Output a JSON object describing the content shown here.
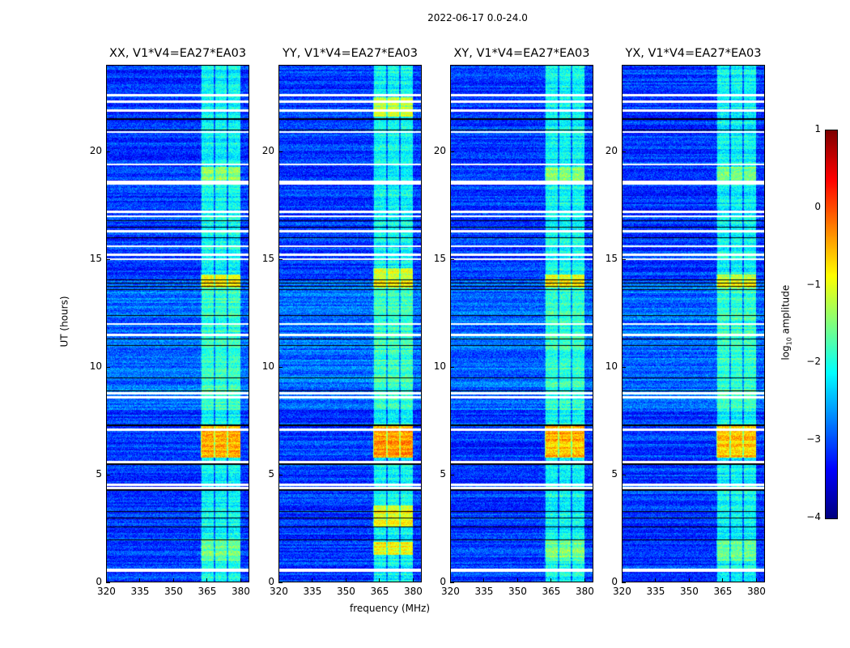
{
  "suptitle": "2022-06-17 0.0-24.0",
  "chart_data": {
    "type": "heatmap",
    "title": "2022-06-17 0.0-24.0",
    "xlabel": "frequency (MHz)",
    "ylabel": "UT (hours)",
    "xlim": [
      320,
      384
    ],
    "ylim": [
      0,
      24
    ],
    "xticks": [
      "320",
      "335",
      "350",
      "365",
      "380"
    ],
    "yticks": [
      "0",
      "5",
      "10",
      "15",
      "20"
    ],
    "xtick_values": [
      320,
      335,
      350,
      365,
      380
    ],
    "ytick_values": [
      0,
      5,
      10,
      15,
      20
    ],
    "panels": [
      {
        "title": "XX, V1*V4=EA27*EA03",
        "band_boost": [
          [
            5.8,
            7.3,
            1.6
          ],
          [
            13.7,
            14.3,
            1.1
          ],
          [
            18.6,
            19.3,
            0.6
          ],
          [
            1.0,
            2.0,
            0.5
          ]
        ]
      },
      {
        "title": "YY, V1*V4=EA27*EA03",
        "band_boost": [
          [
            5.8,
            7.3,
            1.7
          ],
          [
            2.6,
            3.6,
            1.2
          ],
          [
            1.3,
            1.9,
            1.2
          ],
          [
            13.7,
            14.6,
            1.0
          ],
          [
            21.6,
            22.5,
            0.9
          ]
        ]
      },
      {
        "title": "XY, V1*V4=EA27*EA03",
        "band_boost": [
          [
            5.8,
            7.3,
            1.6
          ],
          [
            13.7,
            14.3,
            1.1
          ],
          [
            18.6,
            19.3,
            0.6
          ],
          [
            1.0,
            2.0,
            0.5
          ]
        ]
      },
      {
        "title": "YX, V1*V4=EA27*EA03",
        "band_boost": [
          [
            5.8,
            7.3,
            1.5
          ],
          [
            13.7,
            14.3,
            1.0
          ],
          [
            18.6,
            19.3,
            0.6
          ],
          [
            1.0,
            2.0,
            0.5
          ]
        ]
      }
    ],
    "baseline_log_amplitude": -3.1,
    "bright_band_mhz": [
      362,
      380
    ],
    "flagged_hours": [
      0.55,
      0.62,
      4.4,
      4.55,
      5.6,
      7.1,
      8.6,
      8.8,
      11.5,
      12.0,
      15.0,
      15.2,
      15.6,
      16.3,
      17.0,
      17.2,
      18.5,
      18.6,
      19.4,
      20.9,
      21.9,
      22.3,
      22.6
    ],
    "colorbar": {
      "label": "log10 amplitude",
      "label_main": "log",
      "label_sub": "10",
      "label_rest": " amplitude",
      "range": [
        -4,
        1
      ],
      "ticks": [
        "1",
        "0",
        "−1",
        "−2",
        "−3",
        "−4"
      ],
      "tick_values": [
        1,
        0,
        -1,
        -2,
        -3,
        -4
      ],
      "colormap": "jet"
    }
  }
}
